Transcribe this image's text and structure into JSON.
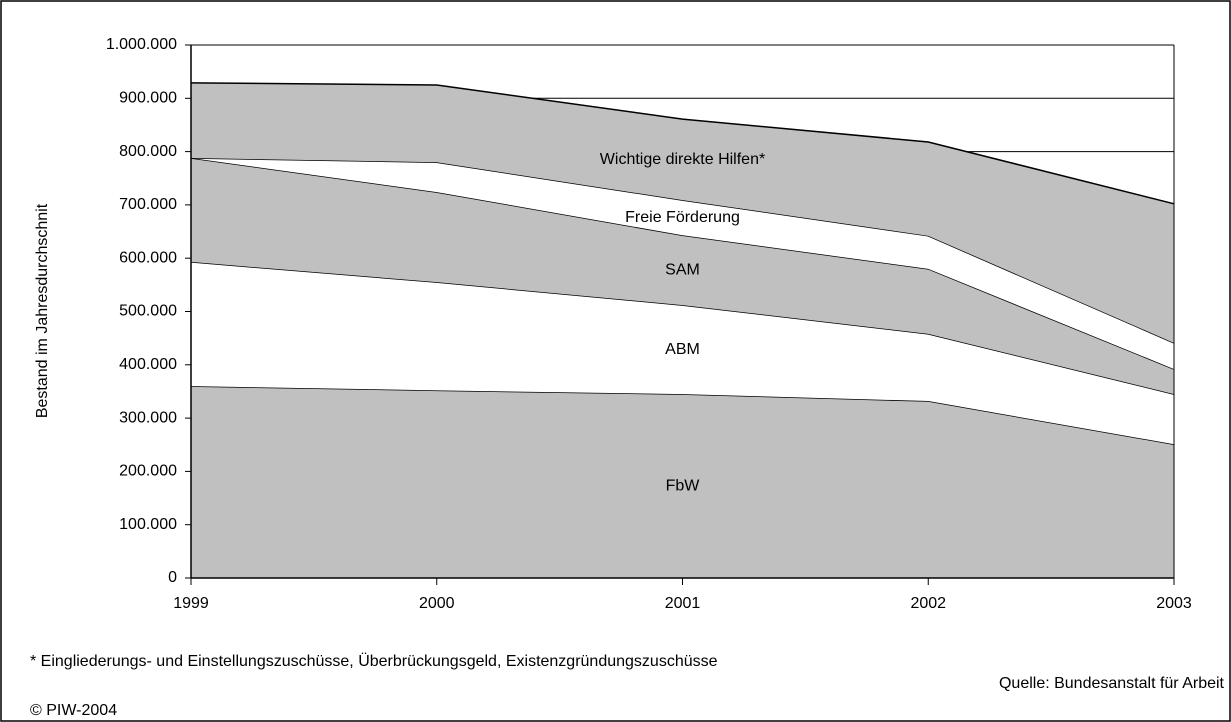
{
  "chart_data": {
    "type": "stacked_area",
    "y_label": "Bestand im Jahresdurchschnit",
    "x": [
      1999,
      2000,
      2001,
      2002,
      2003
    ],
    "xlim": [
      1999,
      2003
    ],
    "xticks": [
      1999,
      2000,
      2001,
      2002,
      2003
    ],
    "ylim": [
      0,
      1000000
    ],
    "yticks": [
      0,
      {
        "value": 100000,
        "label": "100.000"
      },
      {
        "value": 200000,
        "label": "200.000"
      },
      {
        "value": 300000,
        "label": "300.000"
      },
      {
        "value": 400000,
        "label": "400.000"
      },
      {
        "value": 500000,
        "label": "500.000"
      },
      {
        "value": 600000,
        "label": "600.000"
      },
      {
        "value": 700000,
        "label": "700.000"
      },
      {
        "value": 800000,
        "label": "800.000"
      },
      {
        "value": 900000,
        "label": "900.000"
      },
      {
        "value": 1000000,
        "label": "1.000.000"
      }
    ],
    "grid": true,
    "series": [
      {
        "name": "FbW",
        "color": "#c0c0c0",
        "values": [
          360000,
          352000,
          345000,
          332000,
          251000
        ]
      },
      {
        "name": "ABM",
        "color": "#ffffff",
        "values": [
          233000,
          203000,
          167000,
          126000,
          94000
        ]
      },
      {
        "name": "SAM",
        "color": "#c0c0c0",
        "values": [
          195000,
          169000,
          131000,
          122000,
          47000
        ]
      },
      {
        "name": "Freie Förderung",
        "color": "#ffffff",
        "values": [
          0,
          56000,
          66000,
          62000,
          49000
        ]
      },
      {
        "name": "Wichtige direkte Hilfen*",
        "color": "#c0c0c0",
        "values": [
          141000,
          145000,
          152000,
          176000,
          261000
        ]
      }
    ],
    "footnote": "* Eingliederungs- und Einstellungszuschüsse, Überbrückungsgeld, Existenzgründungszuschüsse",
    "source": "Quelle: Bundesanstalt für Arbeit",
    "copyright": "© PIW-2004"
  }
}
